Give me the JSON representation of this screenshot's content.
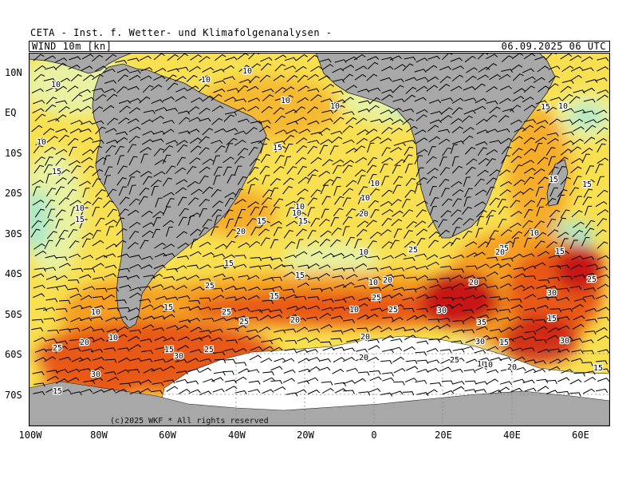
{
  "header": {
    "title": "CETA - Inst. f. Wetter- und Klimafolgenanalysen -",
    "product": "WIND 10m [kn]",
    "datetime": "06.09.2025 06 UTC"
  },
  "axes": {
    "lat_labels": [
      "10N",
      "EQ",
      "10S",
      "20S",
      "30S",
      "40S",
      "50S",
      "60S",
      "70S"
    ],
    "lon_labels": [
      "100W",
      "80W",
      "60W",
      "40W",
      "20W",
      "0",
      "20E",
      "40E",
      "60E"
    ]
  },
  "copyright": "(c)2025 WKF * All rights reserved",
  "colors": {
    "land": "#a8a8a8",
    "ice": "#ffffff",
    "calm": "#aee8c8",
    "light_green": "#e8f2a0",
    "yellow": "#f8e050",
    "orange": "#f5a020",
    "red_orange": "#e85818",
    "red": "#c81818",
    "barb": "#000000"
  },
  "contour_labels": [
    "10",
    "10",
    "10",
    "10",
    "10",
    "10",
    "15",
    "10",
    "15",
    "15",
    "10",
    "10",
    "15",
    "10",
    "15",
    "15",
    "10",
    "20",
    "10",
    "15",
    "15",
    "10",
    "20",
    "25",
    "20",
    "15",
    "10",
    "25",
    "15",
    "20",
    "15",
    "25",
    "10",
    "15",
    "25",
    "20",
    "30",
    "15",
    "25",
    "25",
    "20",
    "35",
    "10",
    "30",
    "25",
    "15",
    "30",
    "25",
    "20",
    "15",
    "30",
    "20",
    "15",
    "10",
    "25",
    "10",
    "20",
    "25",
    "30",
    "15",
    "10",
    "10",
    "20",
    "15",
    "15",
    "25",
    "30"
  ]
}
